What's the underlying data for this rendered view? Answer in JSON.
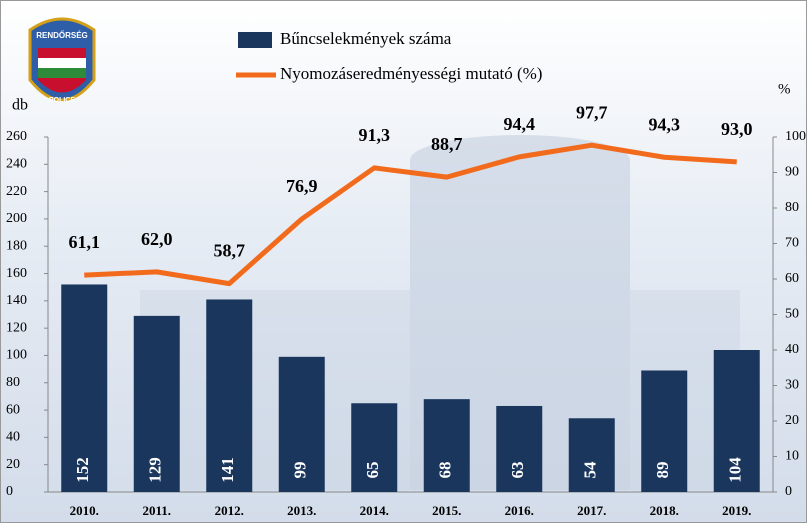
{
  "logo": {
    "top": "RENDŐRSÉG",
    "bottom": "POLICE"
  },
  "chart_data": {
    "type": "bar",
    "y_label": "db",
    "y2_label": "%",
    "categories": [
      "2010.",
      "2011.",
      "2012.",
      "2013.",
      "2014.",
      "2015.",
      "2016.",
      "2017.",
      "2018.",
      "2019."
    ],
    "series": [
      {
        "name": "Bűncselekmények száma",
        "type": "bar",
        "color": "#1b365d",
        "values": [
          152,
          129,
          141,
          99,
          65,
          68,
          63,
          54,
          89,
          104
        ]
      },
      {
        "name": "Nyomozáseredményességi mutató (%)",
        "type": "line",
        "axis": "y2",
        "color": "#f26b1d",
        "values": [
          61.1,
          62.0,
          58.7,
          76.9,
          91.3,
          88.7,
          94.4,
          97.7,
          94.3,
          93.0
        ],
        "value_labels": [
          "61,1",
          "62,0",
          "58,7",
          "76,9",
          "91,3",
          "88,7",
          "94,4",
          "97,7",
          "94,3",
          "93,0"
        ]
      }
    ],
    "ylim": [
      0,
      260
    ],
    "yticks": [
      0,
      20,
      40,
      60,
      80,
      100,
      120,
      140,
      160,
      180,
      200,
      220,
      240,
      260
    ],
    "y2lim": [
      0,
      100
    ],
    "y2ticks": [
      0,
      10,
      20,
      30,
      40,
      50,
      60,
      70,
      80,
      90,
      100
    ],
    "grid": false
  }
}
